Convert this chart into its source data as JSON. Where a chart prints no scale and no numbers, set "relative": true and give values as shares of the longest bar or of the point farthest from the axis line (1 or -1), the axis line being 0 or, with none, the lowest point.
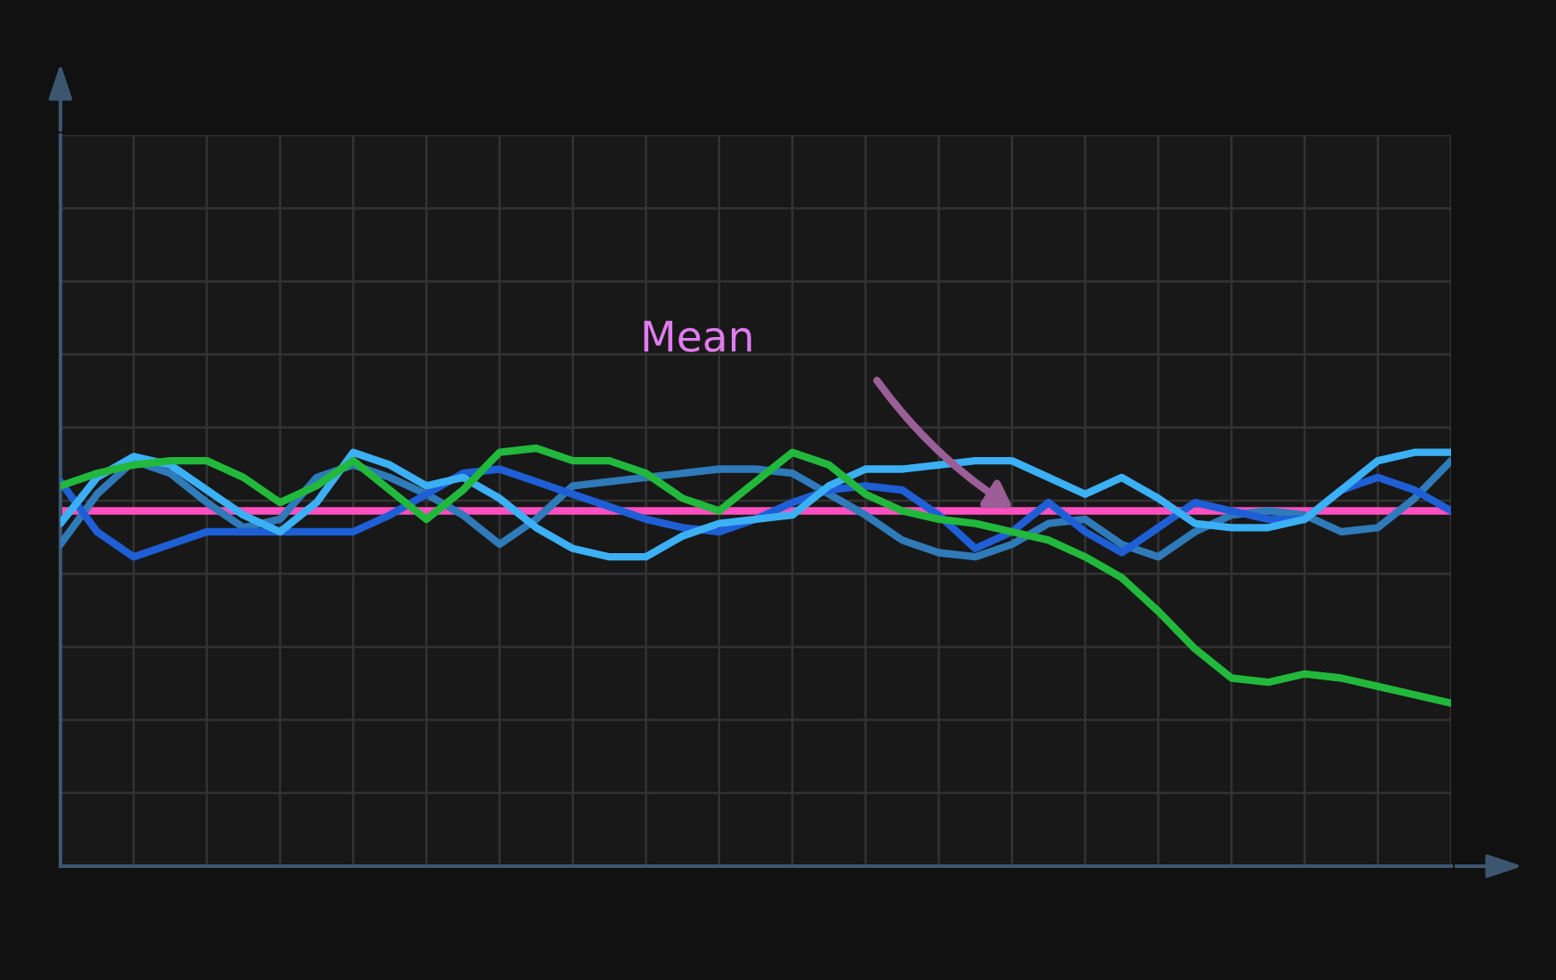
{
  "chart_data": {
    "type": "line",
    "relative": true,
    "grid": true,
    "legend": false,
    "tick_labels": false,
    "marker": "none",
    "line_style": "solid",
    "categories": [
      null,
      null,
      null,
      null,
      null,
      null,
      null,
      null,
      null,
      null,
      null,
      null,
      null,
      null,
      null,
      null,
      null,
      null,
      null,
      null,
      null,
      null,
      null,
      null,
      null,
      null,
      null,
      null,
      null,
      null,
      null,
      null,
      null,
      null,
      null,
      null,
      null,
      null,
      null
    ],
    "series": [
      {
        "color": "#2f7ab9",
        "values": [
          0.77,
          0.89,
          0.97,
          0.94,
          0.87,
          0.81,
          0.83,
          0.93,
          0.96,
          0.93,
          0.89,
          0.84,
          0.77,
          0.83,
          0.91,
          0.92,
          0.93,
          0.94,
          0.95,
          0.95,
          0.94,
          0.89,
          0.84,
          0.78,
          0.75,
          0.74,
          0.77,
          0.82,
          0.83,
          0.77,
          0.74,
          0.8,
          0.84,
          0.85,
          0.84,
          0.8,
          0.81,
          0.88,
          0.97
        ]
      },
      {
        "color": "#1e5fd6",
        "values": [
          0.92,
          0.8,
          0.74,
          0.77,
          0.8,
          0.8,
          0.8,
          0.8,
          0.8,
          0.84,
          0.89,
          0.94,
          0.95,
          0.92,
          0.89,
          0.86,
          0.83,
          0.81,
          0.8,
          0.83,
          0.87,
          0.9,
          0.91,
          0.9,
          0.84,
          0.76,
          0.8,
          0.87,
          0.8,
          0.75,
          0.81,
          0.87,
          0.85,
          0.83,
          0.83,
          0.9,
          0.93,
          0.9,
          0.85
        ]
      },
      {
        "color": "#3cb0f5",
        "values": [
          0.82,
          0.93,
          0.98,
          0.96,
          0.9,
          0.84,
          0.8,
          0.87,
          0.99,
          0.96,
          0.91,
          0.93,
          0.88,
          0.81,
          0.76,
          0.74,
          0.74,
          0.79,
          0.82,
          0.83,
          0.84,
          0.91,
          0.95,
          0.95,
          0.96,
          0.97,
          0.97,
          0.93,
          0.89,
          0.93,
          0.88,
          0.82,
          0.81,
          0.81,
          0.83,
          0.9,
          0.97,
          0.99,
          0.99
        ]
      },
      {
        "color": "#22b83c",
        "values": [
          0.91,
          0.94,
          0.96,
          0.97,
          0.97,
          0.93,
          0.87,
          0.91,
          0.97,
          0.9,
          0.83,
          0.9,
          0.99,
          1,
          0.97,
          0.97,
          0.94,
          0.88,
          0.85,
          0.92,
          0.99,
          0.96,
          0.89,
          0.85,
          0.83,
          0.82,
          0.8,
          0.78,
          0.74,
          0.69,
          0.61,
          0.52,
          0.45,
          0.44,
          0.46,
          0.45,
          0.43,
          0.41,
          0.39
        ]
      }
    ],
    "ref_lines": [
      {
        "axis": "y",
        "value": 0.85,
        "color": "#ff4fc0",
        "line_style": "solid"
      }
    ],
    "annotations": [
      "Mean"
    ]
  }
}
